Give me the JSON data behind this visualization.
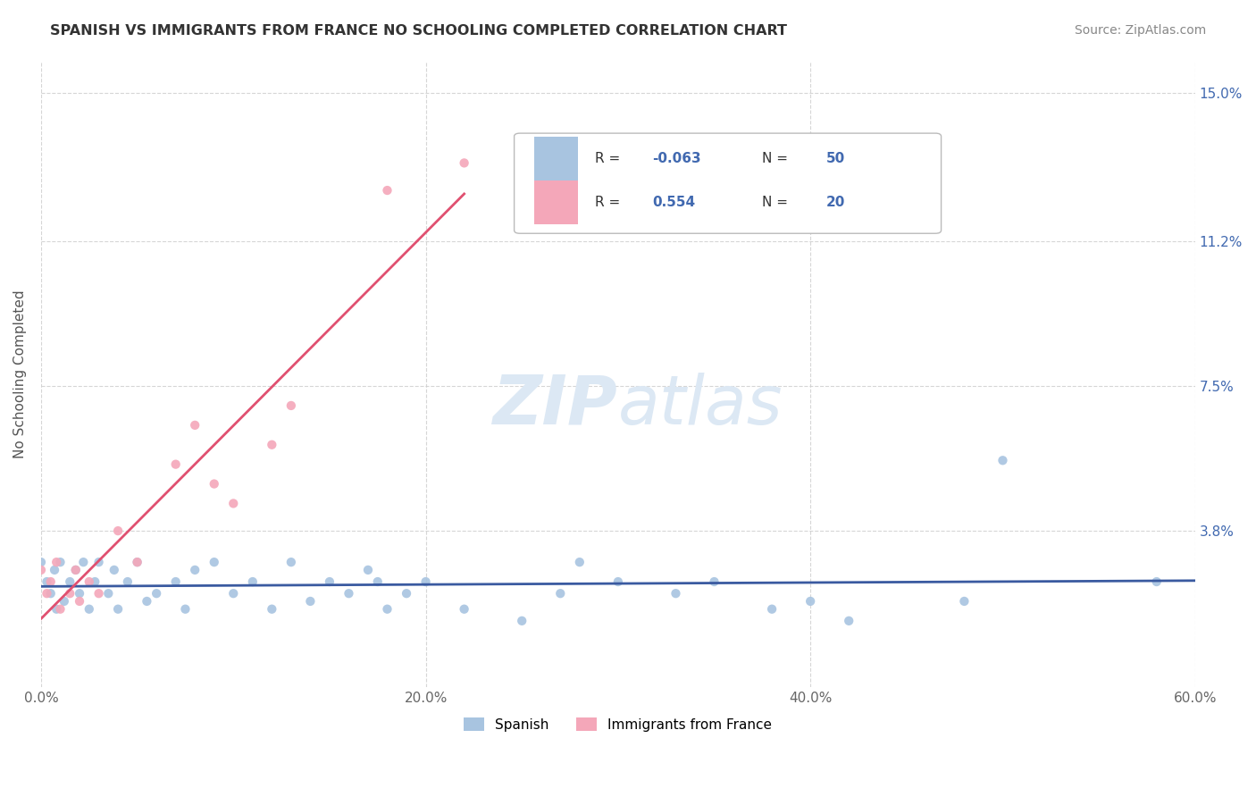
{
  "title": "SPANISH VS IMMIGRANTS FROM FRANCE NO SCHOOLING COMPLETED CORRELATION CHART",
  "source": "Source: ZipAtlas.com",
  "ylabel": "No Schooling Completed",
  "xlim": [
    0.0,
    0.6
  ],
  "ylim": [
    -0.002,
    0.158
  ],
  "xtick_labels": [
    "0.0%",
    "20.0%",
    "40.0%",
    "60.0%"
  ],
  "xtick_vals": [
    0.0,
    0.2,
    0.4,
    0.6
  ],
  "ytick_labels": [
    "3.8%",
    "7.5%",
    "11.2%",
    "15.0%"
  ],
  "ytick_vals": [
    0.038,
    0.075,
    0.112,
    0.15
  ],
  "spanish_color": "#a8c4e0",
  "french_color": "#f4a7b9",
  "spanish_R": -0.063,
  "spanish_N": 50,
  "french_R": 0.554,
  "french_N": 20,
  "spanish_line_color": "#3a5aa0",
  "french_line_color": "#e05070",
  "background_color": "#ffffff",
  "grid_color": "#cccccc",
  "spanish_scatter": [
    [
      0.0,
      0.03
    ],
    [
      0.003,
      0.025
    ],
    [
      0.005,
      0.022
    ],
    [
      0.007,
      0.028
    ],
    [
      0.008,
      0.018
    ],
    [
      0.01,
      0.03
    ],
    [
      0.012,
      0.02
    ],
    [
      0.015,
      0.025
    ],
    [
      0.018,
      0.028
    ],
    [
      0.02,
      0.022
    ],
    [
      0.022,
      0.03
    ],
    [
      0.025,
      0.018
    ],
    [
      0.028,
      0.025
    ],
    [
      0.03,
      0.03
    ],
    [
      0.035,
      0.022
    ],
    [
      0.038,
      0.028
    ],
    [
      0.04,
      0.018
    ],
    [
      0.045,
      0.025
    ],
    [
      0.05,
      0.03
    ],
    [
      0.055,
      0.02
    ],
    [
      0.06,
      0.022
    ],
    [
      0.07,
      0.025
    ],
    [
      0.075,
      0.018
    ],
    [
      0.08,
      0.028
    ],
    [
      0.09,
      0.03
    ],
    [
      0.1,
      0.022
    ],
    [
      0.11,
      0.025
    ],
    [
      0.12,
      0.018
    ],
    [
      0.13,
      0.03
    ],
    [
      0.14,
      0.02
    ],
    [
      0.15,
      0.025
    ],
    [
      0.16,
      0.022
    ],
    [
      0.17,
      0.028
    ],
    [
      0.175,
      0.025
    ],
    [
      0.18,
      0.018
    ],
    [
      0.19,
      0.022
    ],
    [
      0.2,
      0.025
    ],
    [
      0.22,
      0.018
    ],
    [
      0.25,
      0.015
    ],
    [
      0.27,
      0.022
    ],
    [
      0.28,
      0.03
    ],
    [
      0.3,
      0.025
    ],
    [
      0.33,
      0.022
    ],
    [
      0.35,
      0.025
    ],
    [
      0.38,
      0.018
    ],
    [
      0.4,
      0.02
    ],
    [
      0.42,
      0.015
    ],
    [
      0.48,
      0.02
    ],
    [
      0.5,
      0.056
    ],
    [
      0.58,
      0.025
    ]
  ],
  "french_scatter": [
    [
      0.0,
      0.028
    ],
    [
      0.003,
      0.022
    ],
    [
      0.005,
      0.025
    ],
    [
      0.008,
      0.03
    ],
    [
      0.01,
      0.018
    ],
    [
      0.015,
      0.022
    ],
    [
      0.018,
      0.028
    ],
    [
      0.02,
      0.02
    ],
    [
      0.025,
      0.025
    ],
    [
      0.03,
      0.022
    ],
    [
      0.04,
      0.038
    ],
    [
      0.05,
      0.03
    ],
    [
      0.07,
      0.055
    ],
    [
      0.08,
      0.065
    ],
    [
      0.09,
      0.05
    ],
    [
      0.1,
      0.045
    ],
    [
      0.12,
      0.06
    ],
    [
      0.13,
      0.07
    ],
    [
      0.18,
      0.125
    ],
    [
      0.22,
      0.132
    ]
  ]
}
